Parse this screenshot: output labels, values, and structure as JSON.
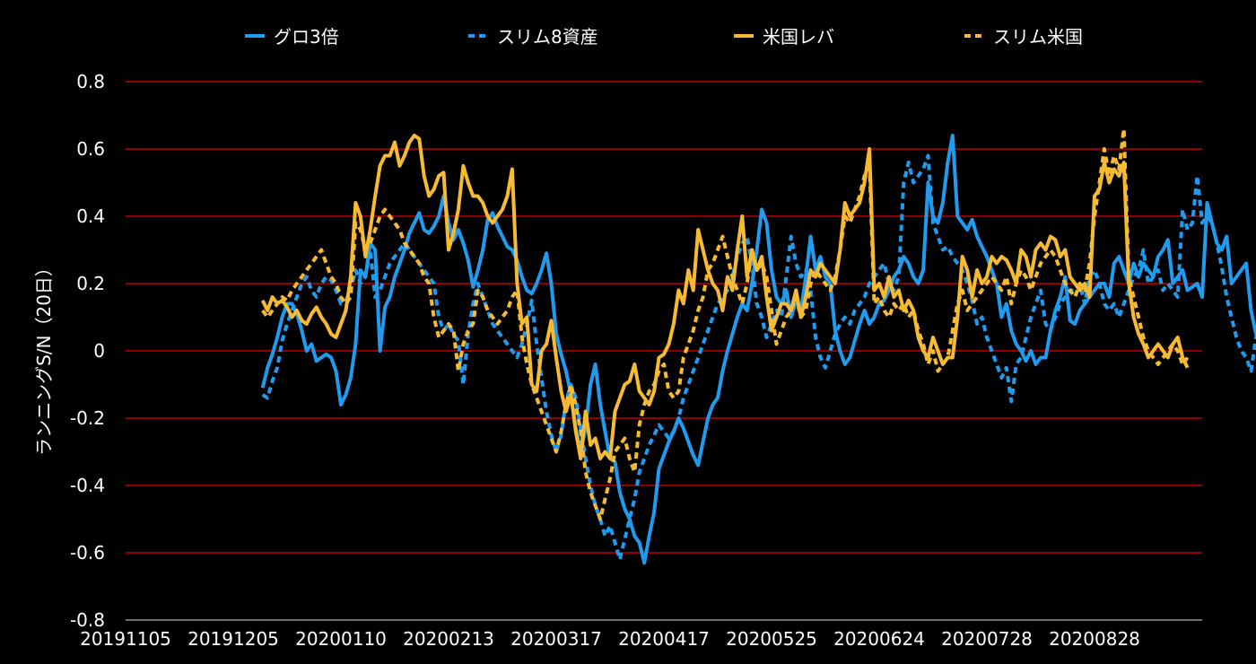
{
  "chart_data": {
    "type": "line",
    "title": "",
    "xlabel": "",
    "ylabel": "ランニングS/N（20日）",
    "ylim": [
      -0.8,
      0.8
    ],
    "yticks": [
      -0.8,
      -0.6,
      -0.4,
      -0.2,
      0,
      0.2,
      0.4,
      0.6,
      0.8
    ],
    "ytick_labels": [
      "-0.8",
      "-0.6",
      "-0.4",
      "-0.2",
      "0",
      "0.2",
      "0.4",
      "0.6",
      "0.8"
    ],
    "xtick_labels": [
      "20191105",
      "20191205",
      "20200110",
      "20200213",
      "20200317",
      "20200417",
      "20200525",
      "20200624",
      "20200728",
      "20200828"
    ],
    "n_points": 221,
    "grid": true,
    "grid_color": "#c00000",
    "legend_position": "top",
    "series": [
      {
        "name": "グロ3倍",
        "color": "#1f9bf0",
        "dash": "solid",
        "start": 28,
        "values": [
          -0.11,
          -0.05,
          -0.01,
          0.04,
          0.1,
          0.14,
          0.14,
          0.11,
          0.06,
          0.0,
          0.02,
          -0.03,
          -0.02,
          -0.01,
          -0.02,
          -0.06,
          -0.16,
          -0.13,
          -0.08,
          0.02,
          0.24,
          0.22,
          0.32,
          0.3,
          0.0,
          0.13,
          0.16,
          0.22,
          0.26,
          0.3,
          0.35,
          0.38,
          0.41,
          0.36,
          0.35,
          0.37,
          0.4,
          0.46,
          0.38,
          0.33,
          0.36,
          0.32,
          0.27,
          0.19,
          0.24,
          0.3,
          0.39,
          0.41,
          0.37,
          0.34,
          0.31,
          0.3,
          0.27,
          0.22,
          0.18,
          0.17,
          0.2,
          0.24,
          0.29,
          0.2,
          0.05,
          -0.01,
          -0.06,
          -0.13,
          -0.23,
          -0.3,
          -0.23,
          -0.1,
          -0.04,
          -0.16,
          -0.24,
          -0.32,
          -0.33,
          -0.42,
          -0.47,
          -0.5,
          -0.55,
          -0.57,
          -0.63,
          -0.55,
          -0.48,
          -0.35,
          -0.31,
          -0.27,
          -0.24,
          -0.2,
          -0.23,
          -0.27,
          -0.31,
          -0.34,
          -0.27,
          -0.2,
          -0.16,
          -0.14,
          -0.06,
          0.0,
          0.05,
          0.1,
          0.14,
          0.12,
          0.2,
          0.3,
          0.42,
          0.38,
          0.24,
          0.16,
          0.14,
          0.18,
          0.1,
          0.15,
          0.12,
          0.22,
          0.34,
          0.24,
          0.28,
          0.22,
          0.2,
          0.06,
          0.0,
          -0.04,
          -0.02,
          0.03,
          0.08,
          0.12,
          0.08,
          0.1,
          0.14,
          0.15,
          0.18,
          0.22,
          0.24,
          0.28,
          0.26,
          0.22,
          0.2,
          0.24,
          0.5,
          0.4,
          0.38,
          0.44,
          0.56,
          0.64,
          0.4,
          0.38,
          0.36,
          0.39,
          0.34,
          0.31,
          0.28,
          0.24,
          0.2,
          0.1,
          0.14,
          0.06,
          0.02,
          0.0,
          -0.03,
          0.0,
          -0.04,
          -0.02,
          -0.02,
          0.06,
          0.12,
          0.16,
          0.22,
          0.09,
          0.08,
          0.12,
          0.14,
          0.16,
          0.18,
          0.2,
          0.2,
          0.16,
          0.26,
          0.28,
          0.24,
          0.2,
          0.26,
          0.22,
          0.26,
          0.24,
          0.22,
          0.28,
          0.3,
          0.33,
          0.2,
          0.22,
          0.24,
          0.18,
          0.19,
          0.2,
          0.16,
          0.44,
          0.38,
          0.32,
          0.3,
          0.34,
          0.2,
          0.22,
          0.24,
          0.26,
          0.12,
          0.05,
          0.02,
          -0.01,
          0.0,
          -0.04,
          0.06,
          0.08,
          0.13,
          0.12,
          0.05
        ]
      },
      {
        "name": "スリム8資産",
        "color": "#1f9bf0",
        "dash": "dashed",
        "start": 28,
        "values": [
          -0.13,
          -0.14,
          -0.09,
          -0.05,
          0.03,
          0.08,
          0.12,
          0.16,
          0.2,
          0.22,
          0.18,
          0.16,
          0.2,
          0.22,
          0.21,
          0.18,
          0.14,
          0.15,
          0.18,
          0.24,
          0.2,
          0.22,
          0.3,
          0.16,
          0.18,
          0.22,
          0.26,
          0.28,
          0.3,
          0.32,
          0.3,
          0.28,
          0.26,
          0.24,
          0.22,
          0.2,
          0.1,
          0.06,
          0.08,
          0.05,
          0.03,
          -0.1,
          0.05,
          0.14,
          0.2,
          0.16,
          0.12,
          0.08,
          0.06,
          0.04,
          0.02,
          0.0,
          -0.02,
          0.02,
          0.08,
          0.15,
          0.02,
          -0.08,
          -0.18,
          -0.25,
          -0.3,
          -0.25,
          -0.15,
          -0.1,
          -0.14,
          -0.23,
          -0.32,
          -0.4,
          -0.46,
          -0.5,
          -0.55,
          -0.52,
          -0.57,
          -0.62,
          -0.56,
          -0.5,
          -0.44,
          -0.36,
          -0.32,
          -0.28,
          -0.25,
          -0.22,
          -0.24,
          -0.26,
          -0.24,
          -0.2,
          -0.14,
          -0.1,
          -0.06,
          -0.02,
          0.02,
          0.06,
          0.1,
          0.14,
          0.16,
          0.18,
          0.22,
          0.28,
          0.32,
          0.34,
          0.26,
          0.14,
          0.1,
          0.04,
          0.08,
          0.12,
          0.1,
          0.22,
          0.34,
          0.26,
          0.22,
          0.24,
          0.18,
          0.04,
          -0.02,
          -0.05,
          0.0,
          0.05,
          0.08,
          0.1,
          0.08,
          0.12,
          0.14,
          0.16,
          0.2,
          0.22,
          0.24,
          0.26,
          0.2,
          0.18,
          0.22,
          0.5,
          0.56,
          0.5,
          0.52,
          0.54,
          0.58,
          0.38,
          0.34,
          0.3,
          0.31,
          0.28,
          0.26,
          0.24,
          0.2,
          0.15,
          0.08,
          0.1,
          0.04,
          0.0,
          -0.04,
          -0.08,
          -0.05,
          -0.15,
          -0.04,
          -0.02,
          0.04,
          0.1,
          0.14,
          0.18,
          0.08,
          0.06,
          0.1,
          0.14,
          0.16,
          0.18,
          0.18,
          0.2,
          0.14,
          0.22,
          0.24,
          0.2,
          0.14,
          0.12,
          0.14,
          0.1,
          0.14,
          0.18,
          0.22,
          0.24,
          0.3,
          0.2,
          0.22,
          0.24,
          0.18,
          0.2,
          0.18,
          0.16,
          0.42,
          0.36,
          0.38,
          0.52,
          0.38,
          0.4,
          0.38,
          0.32,
          0.25,
          0.16,
          0.1,
          0.04,
          0.0,
          -0.02,
          -0.06,
          0.04,
          0.06,
          0.1,
          0.12,
          0.08
        ]
      },
      {
        "name": "米国レバ",
        "color": "#f6bb33",
        "dash": "solid",
        "start": 28,
        "values": [
          0.15,
          0.12,
          0.16,
          0.14,
          0.15,
          0.13,
          0.1,
          0.12,
          0.09,
          0.08,
          0.11,
          0.13,
          0.1,
          0.08,
          0.05,
          0.04,
          0.08,
          0.12,
          0.22,
          0.44,
          0.4,
          0.28,
          0.36,
          0.46,
          0.55,
          0.58,
          0.58,
          0.62,
          0.55,
          0.58,
          0.62,
          0.64,
          0.63,
          0.52,
          0.46,
          0.48,
          0.52,
          0.53,
          0.3,
          0.35,
          0.42,
          0.55,
          0.5,
          0.46,
          0.46,
          0.44,
          0.4,
          0.38,
          0.4,
          0.42,
          0.46,
          0.54,
          0.2,
          0.08,
          0.1,
          -0.1,
          -0.12,
          0.0,
          0.02,
          0.09,
          -0.02,
          -0.12,
          -0.18,
          -0.13,
          -0.24,
          -0.32,
          -0.18,
          -0.28,
          -0.26,
          -0.32,
          -0.3,
          -0.32,
          -0.18,
          -0.14,
          -0.1,
          -0.09,
          -0.04,
          -0.12,
          -0.14,
          -0.16,
          -0.12,
          -0.02,
          -0.01,
          0.02,
          0.08,
          0.18,
          0.14,
          0.24,
          0.18,
          0.36,
          0.3,
          0.24,
          0.2,
          0.18,
          0.12,
          0.22,
          0.18,
          0.3,
          0.4,
          0.22,
          0.3,
          0.24,
          0.28,
          0.16,
          0.06,
          0.1,
          0.14,
          0.14,
          0.12,
          0.18,
          0.1,
          0.16,
          0.24,
          0.22,
          0.26,
          0.24,
          0.22,
          0.2,
          0.3,
          0.44,
          0.4,
          0.42,
          0.44,
          0.5,
          0.6,
          0.18,
          0.2,
          0.16,
          0.22,
          0.16,
          0.18,
          0.12,
          0.15,
          0.12,
          0.04,
          0.0,
          -0.02,
          0.04,
          0.0,
          -0.04,
          -0.02,
          -0.02,
          0.1,
          0.28,
          0.24,
          0.16,
          0.24,
          0.2,
          0.22,
          0.28,
          0.26,
          0.28,
          0.27,
          0.24,
          0.2,
          0.3,
          0.28,
          0.22,
          0.3,
          0.32,
          0.3,
          0.34,
          0.33,
          0.28,
          0.3,
          0.22,
          0.2,
          0.18,
          0.2,
          0.16,
          0.46,
          0.48,
          0.56,
          0.5,
          0.54,
          0.52,
          0.56,
          0.2,
          0.1,
          0.05,
          0.02,
          -0.02,
          0.0,
          0.02,
          0.0,
          -0.02,
          0.02,
          0.04,
          -0.02,
          -0.05
        ]
      },
      {
        "name": "スリム米国",
        "color": "#f6bb33",
        "dash": "dashed",
        "start": 28,
        "values": [
          0.12,
          0.1,
          0.12,
          0.14,
          0.16,
          0.15,
          0.18,
          0.2,
          0.22,
          0.24,
          0.26,
          0.28,
          0.3,
          0.26,
          0.22,
          0.2,
          0.16,
          0.14,
          0.16,
          0.38,
          0.36,
          0.3,
          0.32,
          0.36,
          0.4,
          0.42,
          0.4,
          0.38,
          0.36,
          0.32,
          0.3,
          0.28,
          0.26,
          0.22,
          0.2,
          0.1,
          0.04,
          0.06,
          0.08,
          0.06,
          -0.06,
          0.02,
          0.06,
          0.08,
          0.18,
          0.16,
          0.12,
          0.1,
          0.08,
          0.1,
          0.12,
          0.16,
          0.18,
          0.04,
          -0.04,
          -0.1,
          -0.14,
          -0.18,
          -0.22,
          -0.26,
          -0.3,
          -0.24,
          -0.16,
          -0.1,
          -0.16,
          -0.24,
          -0.36,
          -0.42,
          -0.46,
          -0.5,
          -0.44,
          -0.38,
          -0.3,
          -0.28,
          -0.26,
          -0.32,
          -0.36,
          -0.22,
          -0.16,
          -0.12,
          -0.1,
          -0.06,
          -0.04,
          -0.12,
          -0.14,
          -0.12,
          -0.02,
          0.02,
          0.06,
          0.12,
          0.16,
          0.24,
          0.26,
          0.3,
          0.34,
          0.28,
          0.22,
          0.18,
          0.14,
          0.2,
          0.3,
          0.24,
          0.26,
          0.22,
          0.12,
          0.02,
          0.06,
          0.1,
          0.12,
          0.16,
          0.1,
          0.12,
          0.2,
          0.24,
          0.22,
          0.2,
          0.18,
          0.22,
          0.3,
          0.4,
          0.38,
          0.42,
          0.46,
          0.52,
          0.56,
          0.14,
          0.16,
          0.12,
          0.1,
          0.14,
          0.12,
          0.14,
          0.1,
          0.12,
          0.06,
          0.02,
          -0.04,
          0.0,
          -0.06,
          -0.04,
          -0.02,
          0.06,
          0.14,
          0.18,
          0.12,
          0.14,
          0.16,
          0.18,
          0.2,
          0.22,
          0.2,
          0.18,
          0.22,
          0.14,
          0.2,
          0.24,
          0.22,
          0.18,
          0.22,
          0.26,
          0.28,
          0.3,
          0.28,
          0.24,
          0.2,
          0.18,
          0.16,
          0.2,
          0.18,
          0.26,
          0.4,
          0.5,
          0.6,
          0.52,
          0.58,
          0.54,
          0.66,
          0.22,
          0.16,
          0.1,
          0.04,
          0.0,
          -0.02,
          -0.04,
          -0.02,
          0.0,
          0.02,
          0.0,
          -0.04,
          -0.02
        ]
      }
    ]
  }
}
